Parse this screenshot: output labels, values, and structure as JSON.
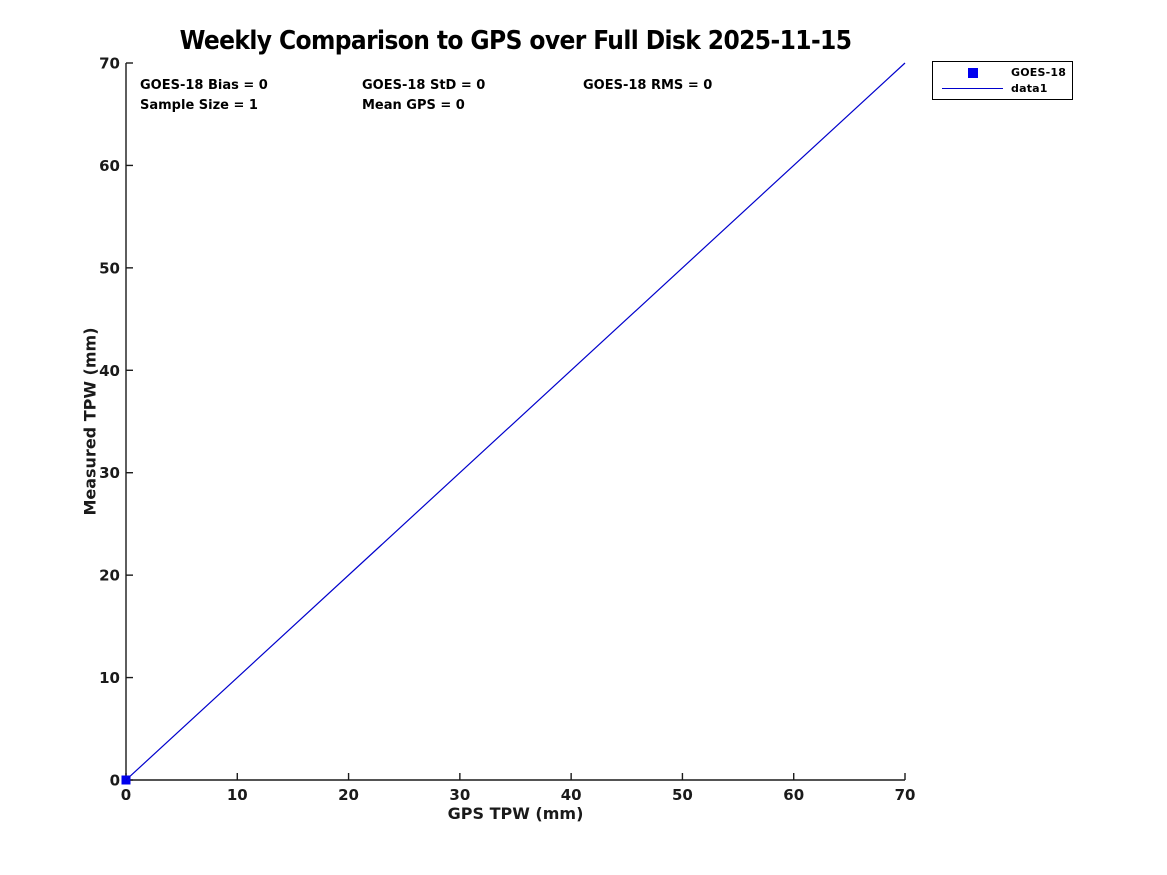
{
  "chart_data": {
    "type": "scatter",
    "title": "Weekly Comparison to GPS over Full Disk 2025-11-15",
    "xlabel": "GPS TPW (mm)",
    "ylabel": "Measured TPW (mm)",
    "xlim": [
      0,
      70
    ],
    "ylim": [
      0,
      70
    ],
    "x_ticks": [
      0,
      10,
      20,
      30,
      40,
      50,
      60,
      70
    ],
    "y_ticks": [
      0,
      10,
      20,
      30,
      40,
      50,
      60,
      70
    ],
    "grid": false,
    "axis_color": "#1a1a1a",
    "annotations": [
      {
        "text": "GOES-18 Bias = 0"
      },
      {
        "text": "GOES-18 StD = 0"
      },
      {
        "text": "GOES-18 RMS = 0"
      },
      {
        "text": "Sample Size = 1"
      },
      {
        "text": "Mean GPS = 0"
      }
    ],
    "series": [
      {
        "name": "GOES-18",
        "type": "scatter",
        "marker": "filled-square",
        "color": "#0000ee",
        "points": [
          [
            0,
            0
          ]
        ]
      },
      {
        "name": "data1",
        "type": "line",
        "color": "#0000cc",
        "points": [
          [
            0,
            0
          ],
          [
            70,
            70
          ]
        ]
      }
    ],
    "legend": {
      "position": "outside-top-right",
      "entries": [
        "GOES-18",
        "data1"
      ]
    }
  }
}
